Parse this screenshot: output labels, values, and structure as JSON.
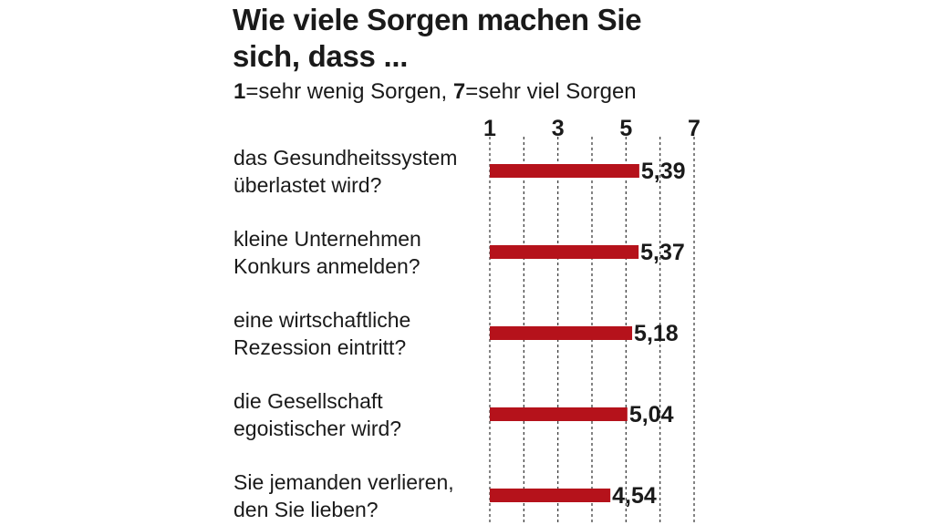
{
  "title": "Wie viele Sorgen machen Sie sich, dass ...",
  "subtitle": {
    "low_key": "1",
    "low_text": "=sehr wenig Sorgen, ",
    "high_key": "7",
    "high_text": "=sehr viel Sorgen"
  },
  "chart_data": {
    "type": "bar",
    "orientation": "horizontal",
    "title": "Wie viele Sorgen machen Sie sich, dass ...",
    "categories": [
      [
        "das Gesundheitssystem",
        "überlastet wird?"
      ],
      [
        "kleine Unternehmen",
        "Konkurs anmelden?"
      ],
      [
        "eine wirtschaftliche",
        "Rezession eintritt?"
      ],
      [
        "die Gesellschaft",
        "egoistischer wird?"
      ],
      [
        "Sie jemanden verlieren,",
        "den Sie lieben?"
      ]
    ],
    "values": [
      5.39,
      5.37,
      5.18,
      5.04,
      4.54
    ],
    "value_labels": [
      "5,39",
      "5,37",
      "5,18",
      "5,04",
      "4,54"
    ],
    "xlim": [
      1,
      7
    ],
    "x_ticks": [
      1,
      3,
      5,
      7
    ],
    "x_tick_labels": [
      "1",
      "3",
      "5",
      "7"
    ],
    "grid": true,
    "bar_color": "#b5121b"
  }
}
